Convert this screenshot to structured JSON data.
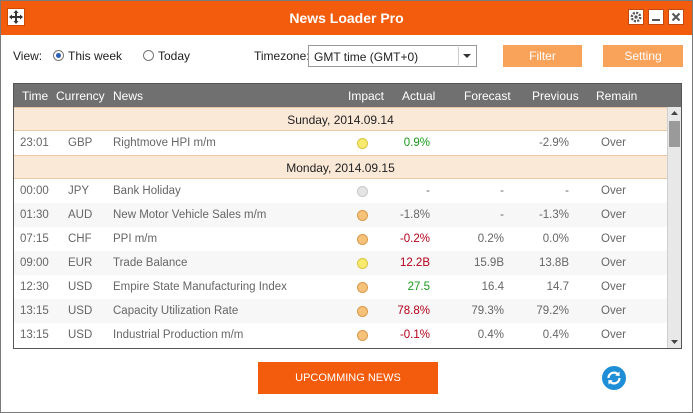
{
  "window": {
    "title": "News Loader Pro"
  },
  "toolbar": {
    "view_label": "View:",
    "option_this_week": "This week",
    "option_today": "Today",
    "selected_view": "This week",
    "timezone_label": "Timezone:",
    "timezone_value": "GMT time (GMT+0)",
    "filter_label": "Filter",
    "setting_label": "Setting"
  },
  "table": {
    "columns": [
      "Time",
      "Currency",
      "News",
      "Impact",
      "Actual",
      "Forecast",
      "Previous",
      "Remain"
    ],
    "groups": [
      {
        "date": "Sunday, 2014.09.14",
        "rows": [
          {
            "time": "23:01",
            "currency": "GBP",
            "news": "Rightmove HPI m/m",
            "impact": "low",
            "actual": "0.9%",
            "actual_trend": "up",
            "forecast": "",
            "previous": "-2.9%",
            "remain": "Over"
          }
        ]
      },
      {
        "date": "Monday, 2014.09.15",
        "rows": [
          {
            "time": "00:00",
            "currency": "JPY",
            "news": "Bank Holiday",
            "impact": "none",
            "actual": "-",
            "actual_trend": "neutral",
            "forecast": "-",
            "previous": "-",
            "remain": "Over"
          },
          {
            "time": "01:30",
            "currency": "AUD",
            "news": "New Motor Vehicle Sales m/m",
            "impact": "medium",
            "actual": "-1.8%",
            "actual_trend": "neutral",
            "forecast": "-",
            "previous": "-1.3%",
            "remain": "Over"
          },
          {
            "time": "07:15",
            "currency": "CHF",
            "news": "PPI m/m",
            "impact": "medium",
            "actual": "-0.2%",
            "actual_trend": "down",
            "forecast": "0.2%",
            "previous": "0.0%",
            "remain": "Over"
          },
          {
            "time": "09:00",
            "currency": "EUR",
            "news": "Trade Balance",
            "impact": "low",
            "actual": "12.2B",
            "actual_trend": "down",
            "forecast": "15.9B",
            "previous": "13.8B",
            "remain": "Over"
          },
          {
            "time": "12:30",
            "currency": "USD",
            "news": "Empire State Manufacturing Index",
            "impact": "medium",
            "actual": "27.5",
            "actual_trend": "up",
            "forecast": "16.4",
            "previous": "14.7",
            "remain": "Over"
          },
          {
            "time": "13:15",
            "currency": "USD",
            "news": "Capacity Utilization Rate",
            "impact": "medium",
            "actual": "78.8%",
            "actual_trend": "down",
            "forecast": "79.3%",
            "previous": "79.2%",
            "remain": "Over"
          },
          {
            "time": "13:15",
            "currency": "USD",
            "news": "Industrial Production m/m",
            "impact": "medium",
            "actual": "-0.1%",
            "actual_trend": "down",
            "forecast": "0.4%",
            "previous": "0.4%",
            "remain": "Over"
          }
        ]
      }
    ]
  },
  "footer": {
    "upcoming_label": "UPCOMMING NEWS",
    "refresh_icon": "refresh-icon"
  },
  "colors": {
    "accent": "#f35c0d",
    "button_light": "#f9a25a",
    "header_bg": "#707070",
    "date_row_bg": "#fbe9d8",
    "up": "#1a9a1a",
    "down": "#b3001b",
    "impact_low": "#f7ea6e",
    "impact_medium": "#f6c27a",
    "impact_none": "#e4e4e4"
  }
}
